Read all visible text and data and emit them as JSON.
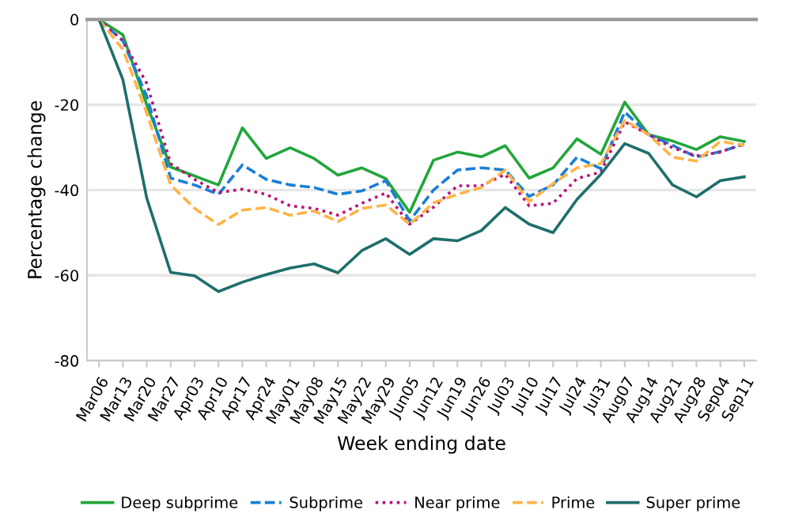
{
  "chart_data": {
    "type": "line",
    "xlabel": "Week ending date",
    "ylabel": "Percentage change",
    "categories": [
      "Mar06",
      "Mar13",
      "Mar20",
      "Mar27",
      "Apr03",
      "Apr10",
      "Apr17",
      "Apr24",
      "May01",
      "May08",
      "May15",
      "May22",
      "May29",
      "Jun05",
      "Jun12",
      "Jun19",
      "Jun26",
      "Jul03",
      "Jul10",
      "Jul17",
      "Jul24",
      "Jul31",
      "Aug07",
      "Aug14",
      "Aug21",
      "Aug28",
      "Sep04",
      "Sep11"
    ],
    "ylim": [
      -80,
      0
    ],
    "yticks": [
      -80,
      -60,
      -40,
      -20,
      0
    ],
    "grid": "y",
    "legend": "bottom",
    "series": [
      {
        "name": "Deep subprime",
        "color": "#22a63a",
        "line_style": "solid",
        "values": [
          0,
          -3.6,
          -20,
          -34.6,
          -36.7,
          -38.8,
          -25.4,
          -32.6,
          -30.1,
          -32.6,
          -36.5,
          -34.8,
          -37.3,
          -45.2,
          -33,
          -31.1,
          -32.2,
          -29.6,
          -37.2,
          -34.8,
          -28,
          -31.6,
          -19.4,
          -27,
          -28.5,
          -30.5,
          -27.5,
          -28.6
        ]
      },
      {
        "name": "Subprime",
        "color": "#1a7fd6",
        "line_style": "dashed",
        "values": [
          0,
          -5,
          -18,
          -37.2,
          -38.8,
          -41,
          -34.1,
          -37.5,
          -38.8,
          -39.4,
          -41,
          -40.2,
          -37.8,
          -47.2,
          -40,
          -35.3,
          -34.8,
          -35.3,
          -41.5,
          -38.8,
          -32.3,
          -35,
          -21.7,
          -27,
          -29.5,
          -32.3,
          -31,
          -29.3
        ]
      },
      {
        "name": "Near prime",
        "color": "#b5177a",
        "line_style": "dotted",
        "values": [
          0,
          -5,
          -15,
          -33.8,
          -37.5,
          -40.6,
          -39.8,
          -41,
          -43.7,
          -44.3,
          -45.9,
          -43.1,
          -40.7,
          -48,
          -44,
          -39,
          -39,
          -36.3,
          -43.7,
          -43.1,
          -37.3,
          -35.8,
          -24,
          -27,
          -30.1,
          -32,
          -31.1,
          -29.1
        ]
      },
      {
        "name": "Prime",
        "color": "#ffb347",
        "line_style": "dashed",
        "values": [
          0,
          -7,
          -22,
          -38.8,
          -44.3,
          -48.1,
          -44.7,
          -44.1,
          -45.9,
          -44.9,
          -47.4,
          -44.3,
          -43.5,
          -48,
          -43,
          -41,
          -39.4,
          -35.3,
          -42.7,
          -38.5,
          -34.8,
          -33.8,
          -23.7,
          -27,
          -32.3,
          -33.2,
          -28.6,
          -29.5
        ]
      },
      {
        "name": "Super prime",
        "color": "#1e6f6a",
        "line_style": "solid",
        "values": [
          0,
          -14.1,
          -41.9,
          -59.3,
          -60.1,
          -63.8,
          -61.6,
          -59.8,
          -58.3,
          -57.3,
          -59.4,
          -54.2,
          -51.4,
          -55.1,
          -51.4,
          -51.9,
          -49.5,
          -44.1,
          -48,
          -50,
          -42.2,
          -36.3,
          -29.1,
          -31.4,
          -38.8,
          -41.6,
          -37.8,
          -36.9
        ]
      }
    ]
  }
}
